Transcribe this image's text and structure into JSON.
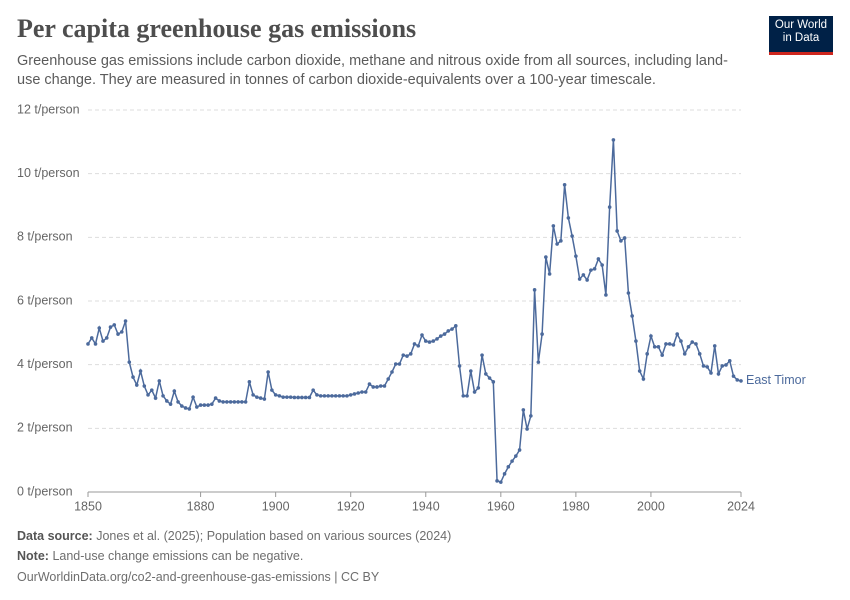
{
  "logo": {
    "line1": "Our World",
    "line2": "in Data"
  },
  "chart_data": {
    "type": "line",
    "title": "Per capita greenhouse gas emissions",
    "subtitle": "Greenhouse gas emissions include carbon dioxide, methane and nitrous oxide from all sources, including land-use change. They are measured in tonnes of carbon dioxide-equivalents over a 100-year timescale.",
    "x": [
      1850,
      1851,
      1852,
      1853,
      1854,
      1855,
      1856,
      1857,
      1858,
      1859,
      1860,
      1861,
      1862,
      1863,
      1864,
      1865,
      1866,
      1867,
      1868,
      1869,
      1870,
      1871,
      1872,
      1873,
      1874,
      1875,
      1876,
      1877,
      1878,
      1879,
      1880,
      1881,
      1882,
      1883,
      1884,
      1885,
      1886,
      1887,
      1888,
      1889,
      1890,
      1891,
      1892,
      1893,
      1894,
      1895,
      1896,
      1897,
      1898,
      1899,
      1900,
      1901,
      1902,
      1903,
      1904,
      1905,
      1906,
      1907,
      1908,
      1909,
      1910,
      1911,
      1912,
      1913,
      1914,
      1915,
      1916,
      1917,
      1918,
      1919,
      1920,
      1921,
      1922,
      1923,
      1924,
      1925,
      1926,
      1927,
      1928,
      1929,
      1930,
      1931,
      1932,
      1933,
      1934,
      1935,
      1936,
      1937,
      1938,
      1939,
      1940,
      1941,
      1942,
      1943,
      1944,
      1945,
      1946,
      1947,
      1948,
      1949,
      1950,
      1951,
      1952,
      1953,
      1954,
      1955,
      1956,
      1957,
      1958,
      1959,
      1960,
      1961,
      1962,
      1963,
      1964,
      1965,
      1966,
      1967,
      1968,
      1969,
      1970,
      1971,
      1972,
      1973,
      1974,
      1975,
      1976,
      1977,
      1978,
      1979,
      1980,
      1981,
      1982,
      1983,
      1984,
      1985,
      1986,
      1987,
      1988,
      1989,
      1990,
      1991,
      1992,
      1993,
      1994,
      1995,
      1996,
      1997,
      1998,
      1999,
      2000,
      2001,
      2002,
      2003,
      2004,
      2005,
      2006,
      2007,
      2008,
      2009,
      2010,
      2011,
      2012,
      2013,
      2014,
      2015,
      2016,
      2017,
      2018,
      2019,
      2020,
      2021,
      2022,
      2023,
      2024
    ],
    "series": [
      {
        "name": "East Timor",
        "color": "#4c6a9c",
        "values": [
          4.65,
          4.84,
          4.65,
          5.15,
          4.74,
          4.84,
          5.18,
          5.25,
          4.96,
          5.03,
          5.37,
          4.08,
          3.61,
          3.36,
          3.8,
          3.33,
          3.05,
          3.2,
          2.95,
          3.49,
          3.02,
          2.86,
          2.76,
          3.17,
          2.83,
          2.7,
          2.64,
          2.61,
          2.98,
          2.67,
          2.73,
          2.73,
          2.73,
          2.76,
          2.95,
          2.86,
          2.83,
          2.83,
          2.83,
          2.83,
          2.83,
          2.83,
          2.83,
          3.46,
          3.05,
          2.98,
          2.95,
          2.92,
          3.77,
          3.2,
          3.05,
          3.02,
          2.98,
          2.98,
          2.98,
          2.97,
          2.97,
          2.97,
          2.97,
          2.97,
          3.2,
          3.05,
          3.02,
          3.02,
          3.02,
          3.02,
          3.02,
          3.02,
          3.02,
          3.02,
          3.05,
          3.08,
          3.11,
          3.14,
          3.14,
          3.39,
          3.3,
          3.3,
          3.33,
          3.33,
          3.55,
          3.77,
          4.02,
          4.02,
          4.3,
          4.27,
          4.34,
          4.65,
          4.59,
          4.93,
          4.74,
          4.71,
          4.74,
          4.81,
          4.9,
          4.96,
          5.06,
          5.12,
          5.22,
          3.96,
          3.02,
          3.02,
          3.8,
          3.14,
          3.27,
          4.3,
          3.71,
          3.58,
          3.46,
          0.35,
          0.31,
          0.57,
          0.79,
          0.97,
          1.13,
          1.32,
          2.58,
          1.98,
          2.39,
          6.35,
          4.08,
          4.96,
          7.38,
          6.85,
          8.36,
          7.79,
          7.89,
          9.65,
          8.61,
          8.04,
          7.41,
          6.69,
          6.82,
          6.66,
          6.97,
          7.01,
          7.32,
          7.13,
          6.19,
          8.95,
          11.06,
          8.2,
          7.89,
          7.98,
          6.25,
          5.53,
          4.74,
          3.8,
          3.55,
          4.34,
          4.9,
          4.56,
          4.56,
          4.3,
          4.65,
          4.65,
          4.62,
          4.96,
          4.74,
          4.34,
          4.56,
          4.71,
          4.65,
          4.34,
          3.96,
          3.93,
          3.74,
          4.59,
          3.71,
          3.96,
          3.99,
          4.12,
          3.64,
          3.52,
          3.49
        ]
      }
    ],
    "xlim": [
      1850,
      2024
    ],
    "xticks": [
      1850,
      1880,
      1900,
      1920,
      1940,
      1960,
      1980,
      2000,
      2024
    ],
    "ylim": [
      0,
      12
    ],
    "yticks": [
      {
        "value": 0,
        "label": "0 t/person"
      },
      {
        "value": 2,
        "label": "2 t/person"
      },
      {
        "value": 4,
        "label": "4 t/person"
      },
      {
        "value": 6,
        "label": "6 t/person"
      },
      {
        "value": 8,
        "label": "8 t/person"
      },
      {
        "value": 10,
        "label": "10 t/person"
      },
      {
        "value": 12,
        "label": "12 t/person"
      }
    ],
    "grid": true
  },
  "footer": {
    "source_label": "Data source:",
    "source": "Jones et al. (2025); Population based on various sources (2024)",
    "note_label": "Note:",
    "note": "Land-use change emissions can be negative.",
    "url": "OurWorldinData.org/co2-and-greenhouse-gas-emissions | CC BY"
  }
}
